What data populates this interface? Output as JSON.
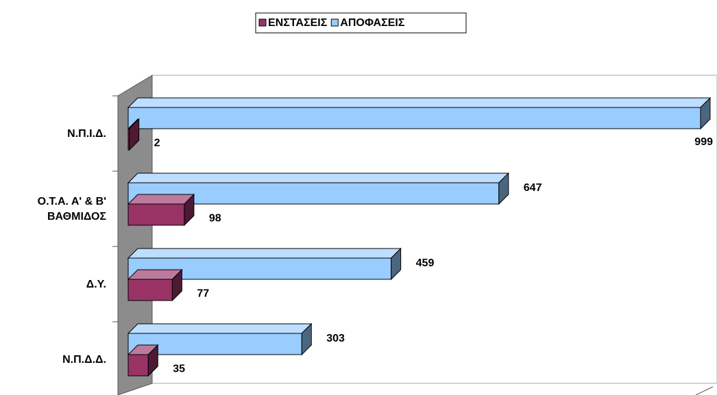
{
  "chart_data": {
    "type": "bar3d_horizontal",
    "categories": [
      "Ν.Π.Ι.Δ.",
      "Ο.Τ.Α. Α' & Β' ΒΑΘΜΙΔΟΣ",
      "Δ.Υ.",
      "Ν.Π.Δ.Δ."
    ],
    "series": [
      {
        "name": "ΕΝΣΤΑΣΕΙΣ",
        "color": "#993366",
        "values": [
          2,
          98,
          77,
          35
        ]
      },
      {
        "name": "ΑΠΟΦΑΣΕΙΣ",
        "color": "#99ccff",
        "values": [
          999,
          647,
          459,
          303
        ]
      }
    ],
    "legend": "top"
  }
}
